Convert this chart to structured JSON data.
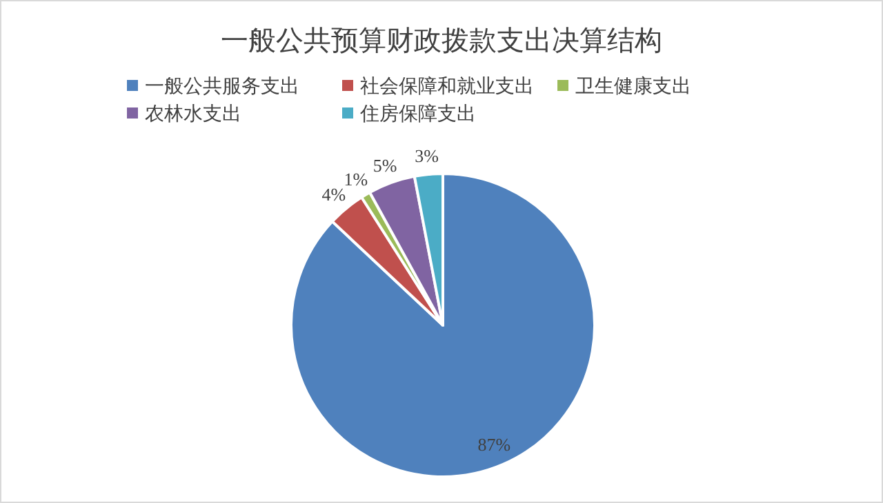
{
  "chart_data": {
    "type": "pie",
    "title": "一般公共预算财政拨款支出决算结构",
    "categories": [
      "一般公共服务支出",
      "社会保障和就业支出",
      "卫生健康支出",
      "农林水支出",
      "住房保障支出"
    ],
    "values": [
      87,
      4,
      1,
      5,
      3
    ],
    "colors": [
      "#4f81bd",
      "#c0504d",
      "#9bbb59",
      "#8064a2",
      "#4bacc6"
    ],
    "value_labels": [
      "87%",
      "4%",
      "1%",
      "5%",
      "3%"
    ],
    "legend": "top"
  }
}
